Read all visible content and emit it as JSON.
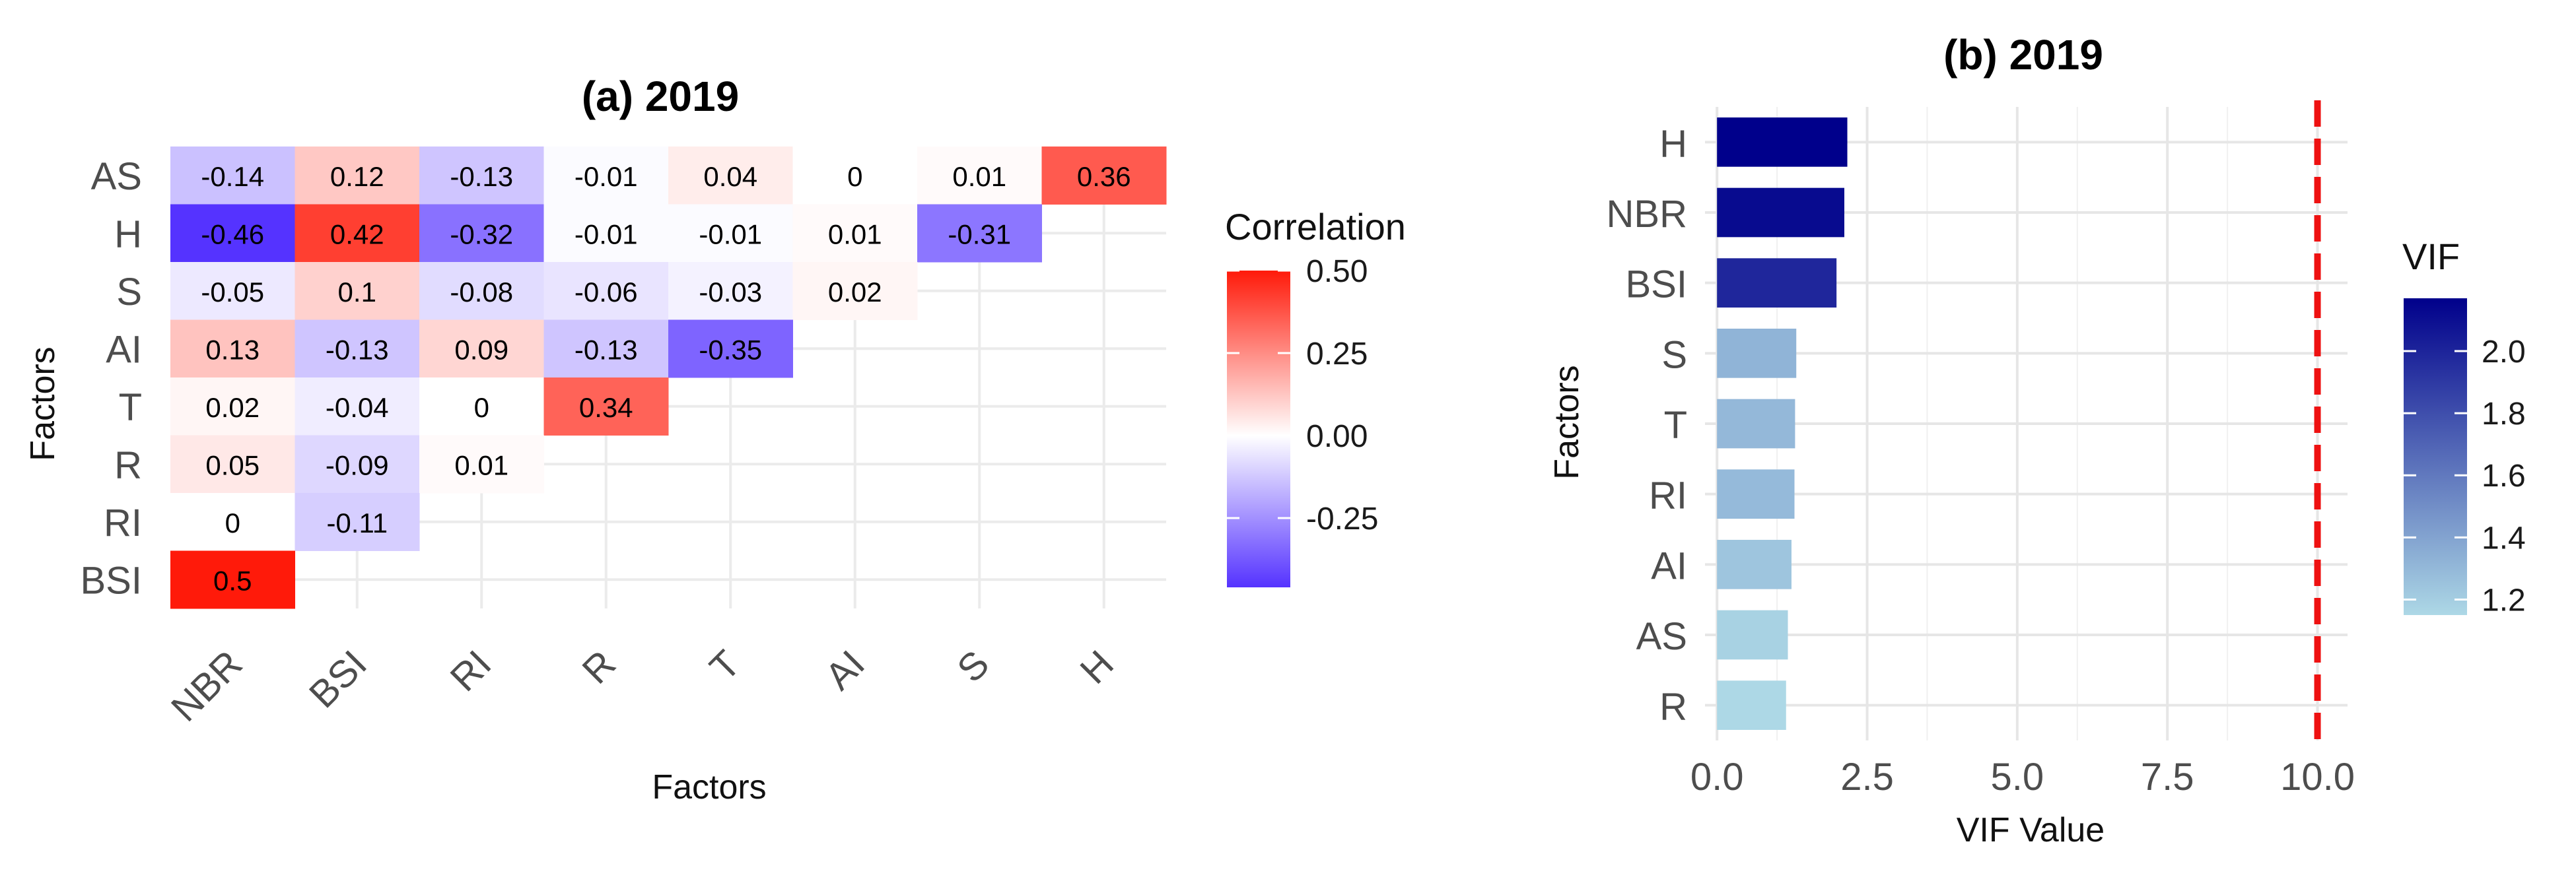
{
  "chart_data": [
    {
      "type": "heatmap",
      "title": "(a) 2019",
      "xlabel": "Factors",
      "ylabel": "Factors",
      "x_categories": [
        "NBR",
        "BSI",
        "RI",
        "R",
        "T",
        "AI",
        "S",
        "H"
      ],
      "y_categories": [
        "AS",
        "H",
        "S",
        "AI",
        "T",
        "R",
        "RI",
        "BSI"
      ],
      "values": [
        [
          -0.14,
          0.12,
          -0.13,
          -0.01,
          0.04,
          0,
          0.01,
          0.36
        ],
        [
          -0.46,
          0.42,
          -0.32,
          -0.01,
          -0.01,
          0.01,
          -0.31,
          null
        ],
        [
          -0.05,
          0.1,
          -0.08,
          -0.06,
          -0.03,
          0.02,
          null,
          null
        ],
        [
          0.13,
          -0.13,
          0.09,
          -0.13,
          -0.35,
          null,
          null,
          null
        ],
        [
          0.02,
          -0.04,
          0,
          0.34,
          null,
          null,
          null,
          null
        ],
        [
          0.05,
          -0.09,
          0.01,
          null,
          null,
          null,
          null,
          null
        ],
        [
          0,
          -0.11,
          null,
          null,
          null,
          null,
          null,
          null
        ],
        [
          0.5,
          null,
          null,
          null,
          null,
          null,
          null,
          null
        ]
      ],
      "legend": {
        "title": "Correlation",
        "ticks": [
          0.5,
          0.25,
          0,
          -0.25
        ],
        "tick_labels": [
          "0.50",
          "0.25",
          "0.00",
          "-0.25"
        ],
        "range": [
          -0.46,
          0.5
        ],
        "colors": {
          "low": "#5533ff",
          "mid": "#ffffff",
          "high": "#ff1a0a"
        }
      },
      "grid": true
    },
    {
      "type": "bar",
      "orientation": "horizontal",
      "title": "(b) 2019",
      "xlabel": "VIF Value",
      "ylabel": "Factors",
      "categories": [
        "H",
        "NBR",
        "BSI",
        "S",
        "T",
        "RI",
        "AI",
        "AS",
        "R"
      ],
      "values": [
        2.17,
        2.12,
        1.99,
        1.32,
        1.3,
        1.29,
        1.24,
        1.18,
        1.15
      ],
      "xlim": [
        -0.2,
        10.5
      ],
      "x_ticks": [
        0,
        2.5,
        5,
        7.5,
        10
      ],
      "x_tick_labels": [
        "0.0",
        "2.5",
        "5.0",
        "7.5",
        "10.0"
      ],
      "reference_line": {
        "x": 10,
        "color": "#ee1111",
        "style": "dashed"
      },
      "legend": {
        "title": "VIF",
        "ticks": [
          2.0,
          1.8,
          1.6,
          1.4,
          1.2
        ],
        "tick_labels": [
          "2.0",
          "1.8",
          "1.6",
          "1.4",
          "1.2"
        ],
        "range": [
          1.15,
          2.17
        ],
        "colors": {
          "low": "#add8e6",
          "high": "#00008b"
        }
      },
      "grid": true
    }
  ]
}
